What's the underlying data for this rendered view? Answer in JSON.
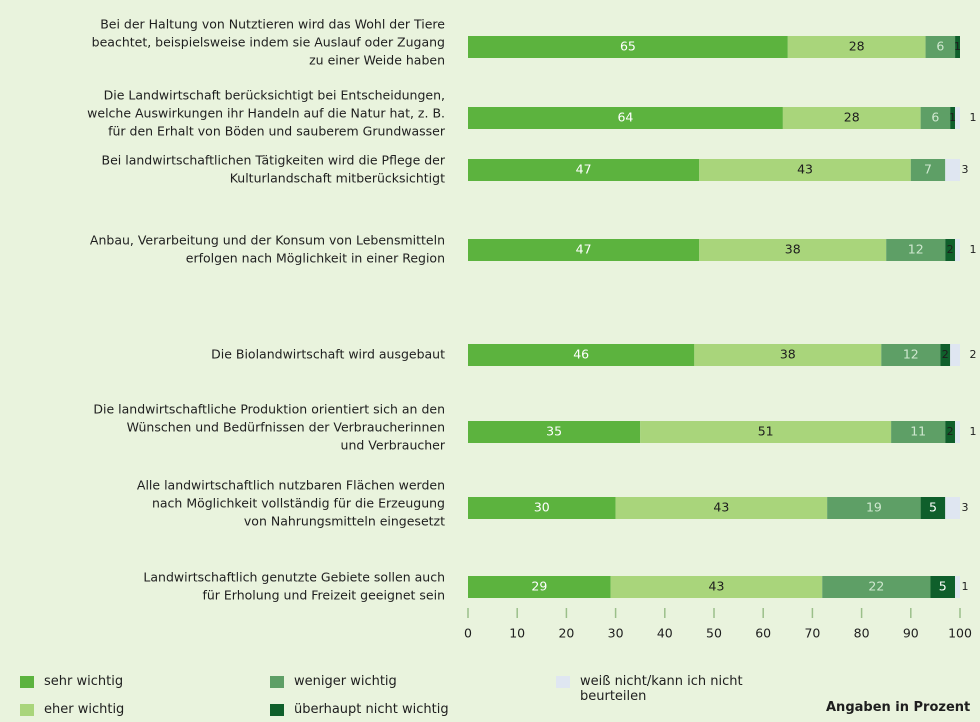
{
  "chart_data": {
    "type": "stacked-barh",
    "categories": [
      [
        "Bei der Haltung von Nutztieren wird das Wohl der Tiere",
        "beachtet, beispielsweise indem sie Auslauf oder Zugang",
        "zu einer Weide haben"
      ],
      [
        "Die Landwirtschaft berücksichtigt bei Entscheidungen,",
        "welche Auswirkungen ihr Handeln auf die Natur hat, z. B.",
        "für den Erhalt von Böden und sauberem Grundwasser"
      ],
      [
        "Bei landwirtschaftlichen Tätigkeiten wird die Pflege der",
        "Kulturlandschaft mitberücksichtigt"
      ],
      [
        "Anbau, Verarbeitung und der Konsum von Lebensmitteln",
        "erfolgen nach Möglichkeit in einer Region"
      ],
      [
        "Die Biolandwirtschaft wird ausgebaut"
      ],
      [
        "Die landwirtschaftliche Produktion orientiert sich an den",
        "Wünschen und Bedürfnissen der Verbraucherinnen",
        "und Verbraucher"
      ],
      [
        "Alle landwirtschaftlich nutzbaren Flächen werden",
        "nach Möglichkeit vollständig für die Erzeugung",
        "von Nahrungsmitteln eingesetzt"
      ],
      [
        "Landwirtschaftlich genutzte Gebiete sollen auch",
        "für Erholung und Freizeit geeignet sein"
      ]
    ],
    "series": [
      {
        "name": "sehr wichtig",
        "color": "#5cb33e",
        "values": [
          65,
          64,
          47,
          47,
          46,
          35,
          30,
          29
        ]
      },
      {
        "name": "eher wichtig",
        "color": "#a9d57b",
        "values": [
          28,
          28,
          43,
          38,
          38,
          51,
          43,
          43
        ]
      },
      {
        "name": "weniger wichtig",
        "color": "#5e9f66",
        "values": [
          6,
          6,
          7,
          12,
          12,
          11,
          19,
          22
        ]
      },
      {
        "name": "überhaupt nicht wichtig",
        "color": "#0f5f2b",
        "values": [
          1,
          1,
          null,
          2,
          2,
          2,
          5,
          5
        ]
      },
      {
        "name": "weiß nicht/kann ich nicht beurteilen",
        "color": "#dfe6f1",
        "values": [
          null,
          1,
          3,
          1,
          2,
          1,
          3,
          1
        ]
      }
    ],
    "xlim": [
      0,
      100
    ],
    "xticks": [
      0,
      10,
      20,
      30,
      40,
      50,
      60,
      70,
      80,
      90,
      100
    ],
    "note": "Angaben in Prozent"
  }
}
